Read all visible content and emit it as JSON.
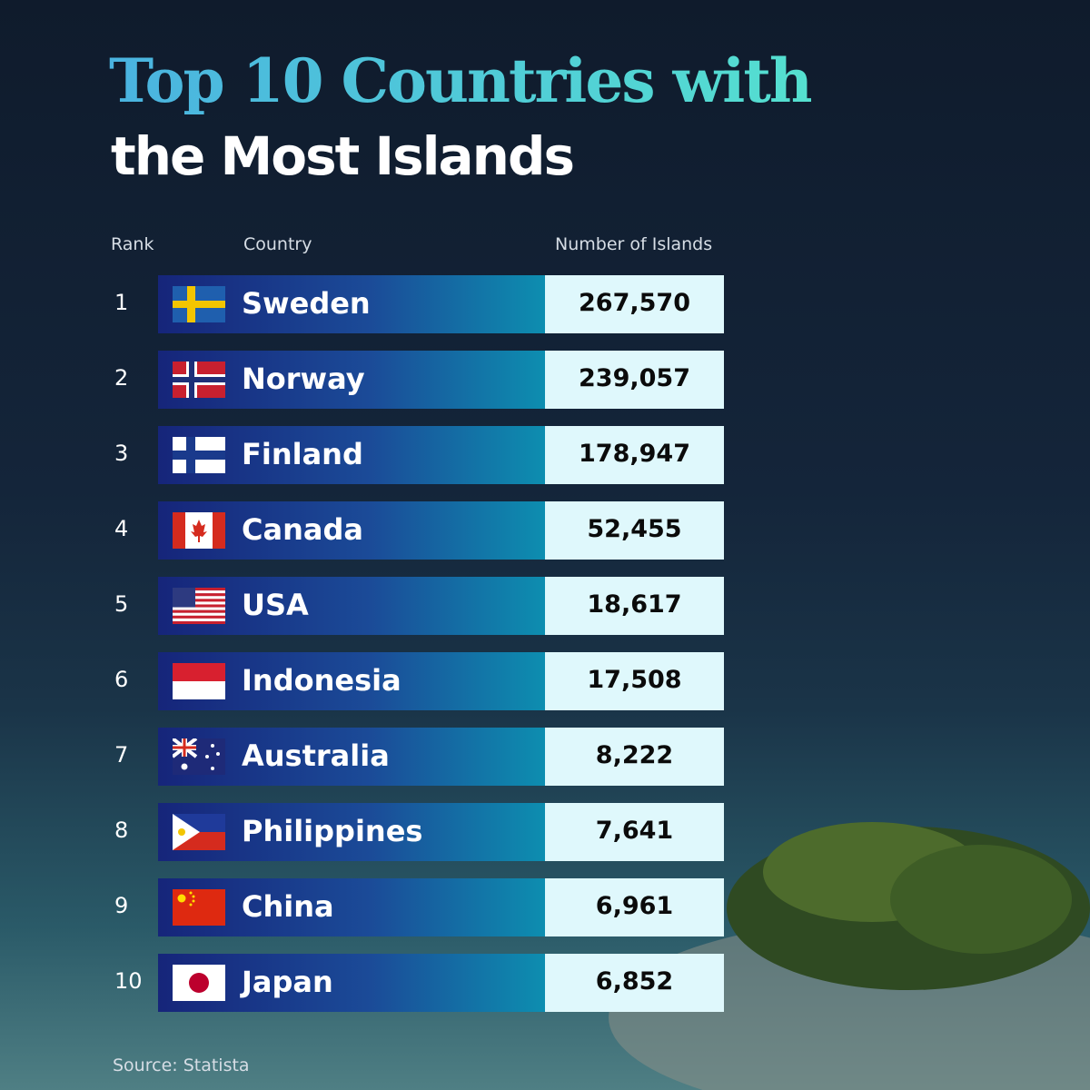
{
  "header": {
    "title_line1": "Top 10 Countries with",
    "title_line2": "the Most Islands"
  },
  "table": {
    "columns": [
      "Rank",
      "Country",
      "Number of Islands"
    ],
    "rows": [
      [
        "1",
        "Sweden",
        "267,570"
      ],
      [
        "2",
        "Norway",
        "239,057"
      ],
      [
        "3",
        "Finland",
        "178,947"
      ],
      [
        "4",
        "Canada",
        "52,455"
      ],
      [
        "5",
        "USA",
        "18,617"
      ],
      [
        "6",
        "Indonesia",
        "17,508"
      ],
      [
        "7",
        "Australia",
        "8,222"
      ],
      [
        "8",
        "Philippines",
        "7,641"
      ],
      [
        "9",
        "China",
        "6,961"
      ],
      [
        "10",
        "Japan",
        "6,852"
      ]
    ]
  },
  "footer": {
    "source": "Source: Statista"
  }
}
